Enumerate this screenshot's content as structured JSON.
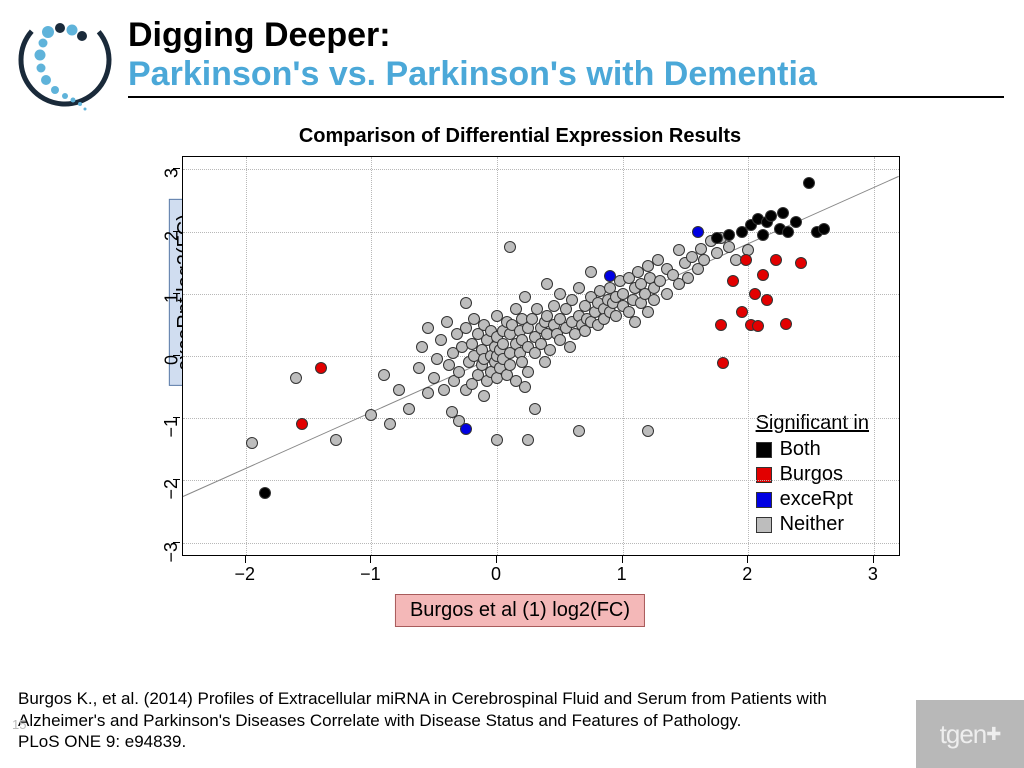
{
  "header": {
    "title_line1": "Digging Deeper:",
    "title_line2": "Parkinson's vs. Parkinson's with Dementia",
    "title_line1_color": "#000000",
    "title_line2_color": "#4ba8d8"
  },
  "chart": {
    "type": "scatter",
    "title": "Comparison of Differential Expression Results",
    "title_fontsize": 20,
    "xlabel": "Burgos et al (1) log2(FC)",
    "ylabel": "exceRpt log2(FC)",
    "xlabel_box_bg": "#f4b8b8",
    "xlabel_box_border": "#a85b5b",
    "ylabel_box_bg": "#d0ddf0",
    "ylabel_box_border": "#5b7ba8",
    "label_fontsize": 20,
    "xlim": [
      -2.5,
      3.2
    ],
    "ylim": [
      -3.2,
      3.2
    ],
    "xticks": [
      -2,
      -1,
      0,
      1,
      2,
      3
    ],
    "yticks": [
      -3,
      -2,
      -1,
      0,
      1,
      2,
      3
    ],
    "tick_fontsize": 18,
    "background_color": "#ffffff",
    "grid_color": "#b8b8b8",
    "marker_size": 12,
    "marker_border": "#333333",
    "regression_line": {
      "x1": -2.5,
      "y1": -2.25,
      "x2": 3.2,
      "y2": 2.9,
      "color": "#888888"
    },
    "legend": {
      "title": "Significant in",
      "items": [
        {
          "label": "Both",
          "color": "#000000",
          "shape": "square"
        },
        {
          "label": "Burgos",
          "color": "#e20000",
          "shape": "square"
        },
        {
          "label": "exceRpt",
          "color": "#0000e2",
          "shape": "square"
        },
        {
          "label": "Neither",
          "color": "#bdbdbd",
          "shape": "square"
        }
      ]
    },
    "series": {
      "neither_color": "#bdbdbd",
      "both_color": "#000000",
      "burgos_color": "#e20000",
      "excerpt_color": "#0000e2",
      "neither": [
        [
          -1.95,
          -1.4
        ],
        [
          -1.6,
          -0.35
        ],
        [
          -1.28,
          -1.35
        ],
        [
          -1.0,
          -0.95
        ],
        [
          -0.9,
          -0.3
        ],
        [
          -0.85,
          -1.1
        ],
        [
          -0.78,
          -0.55
        ],
        [
          -0.7,
          -0.85
        ],
        [
          -0.62,
          -0.2
        ],
        [
          -0.6,
          0.15
        ],
        [
          -0.55,
          -0.6
        ],
        [
          -0.55,
          0.45
        ],
        [
          -0.5,
          -0.35
        ],
        [
          -0.48,
          -0.05
        ],
        [
          -0.45,
          0.25
        ],
        [
          -0.42,
          -0.55
        ],
        [
          -0.4,
          0.55
        ],
        [
          -0.38,
          -0.15
        ],
        [
          -0.36,
          -0.9
        ],
        [
          -0.35,
          0.05
        ],
        [
          -0.34,
          -0.4
        ],
        [
          -0.32,
          0.35
        ],
        [
          -0.3,
          -0.25
        ],
        [
          -0.3,
          -1.05
        ],
        [
          -0.28,
          0.15
        ],
        [
          -0.25,
          -0.55
        ],
        [
          -0.25,
          0.45
        ],
        [
          -0.25,
          0.85
        ],
        [
          -0.22,
          -0.1
        ],
        [
          -0.2,
          0.2
        ],
        [
          -0.2,
          -0.45
        ],
        [
          -0.18,
          0.0
        ],
        [
          -0.18,
          0.6
        ],
        [
          -0.15,
          -0.3
        ],
        [
          -0.15,
          0.35
        ],
        [
          -0.12,
          -0.15
        ],
        [
          -0.12,
          0.1
        ],
        [
          -0.1,
          -0.05
        ],
        [
          -0.1,
          0.5
        ],
        [
          -0.1,
          -0.65
        ],
        [
          -0.08,
          0.25
        ],
        [
          -0.08,
          -0.4
        ],
        [
          -0.05,
          0.0
        ],
        [
          -0.05,
          0.4
        ],
        [
          -0.05,
          -0.25
        ],
        [
          -0.02,
          0.15
        ],
        [
          -0.02,
          -0.1
        ],
        [
          0.0,
          0.0
        ],
        [
          0.0,
          0.3
        ],
        [
          0.0,
          -0.35
        ],
        [
          0.0,
          0.65
        ],
        [
          0.0,
          -1.35
        ],
        [
          0.02,
          0.1
        ],
        [
          0.02,
          -0.2
        ],
        [
          0.05,
          0.4
        ],
        [
          0.05,
          -0.05
        ],
        [
          0.05,
          0.2
        ],
        [
          0.08,
          -0.3
        ],
        [
          0.08,
          0.55
        ],
        [
          0.1,
          0.05
        ],
        [
          0.1,
          0.35
        ],
        [
          0.1,
          -0.15
        ],
        [
          0.1,
          1.75
        ],
        [
          0.12,
          0.5
        ],
        [
          0.15,
          0.2
        ],
        [
          0.15,
          -0.4
        ],
        [
          0.15,
          0.75
        ],
        [
          0.18,
          0.05
        ],
        [
          0.18,
          0.4
        ],
        [
          0.2,
          -0.1
        ],
        [
          0.2,
          0.6
        ],
        [
          0.2,
          0.25
        ],
        [
          0.22,
          0.95
        ],
        [
          0.22,
          -0.5
        ],
        [
          0.25,
          0.15
        ],
        [
          0.25,
          0.45
        ],
        [
          0.25,
          -0.25
        ],
        [
          0.25,
          -1.35
        ],
        [
          0.28,
          0.6
        ],
        [
          0.3,
          0.3
        ],
        [
          0.3,
          0.05
        ],
        [
          0.3,
          -0.85
        ],
        [
          0.32,
          0.75
        ],
        [
          0.35,
          0.45
        ],
        [
          0.35,
          0.2
        ],
        [
          0.38,
          0.55
        ],
        [
          0.38,
          -0.1
        ],
        [
          0.4,
          0.65
        ],
        [
          0.4,
          0.35
        ],
        [
          0.4,
          1.15
        ],
        [
          0.42,
          0.1
        ],
        [
          0.45,
          0.5
        ],
        [
          0.45,
          0.8
        ],
        [
          0.48,
          0.35
        ],
        [
          0.5,
          0.6
        ],
        [
          0.5,
          0.25
        ],
        [
          0.5,
          1.0
        ],
        [
          0.55,
          0.45
        ],
        [
          0.55,
          0.75
        ],
        [
          0.58,
          0.15
        ],
        [
          0.6,
          0.55
        ],
        [
          0.6,
          0.9
        ],
        [
          0.62,
          0.35
        ],
        [
          0.65,
          0.65
        ],
        [
          0.65,
          1.1
        ],
        [
          0.65,
          -1.2
        ],
        [
          0.68,
          0.5
        ],
        [
          0.7,
          0.8
        ],
        [
          0.7,
          0.4
        ],
        [
          0.72,
          0.6
        ],
        [
          0.75,
          0.95
        ],
        [
          0.75,
          0.55
        ],
        [
          0.75,
          1.35
        ],
        [
          0.78,
          0.7
        ],
        [
          0.8,
          0.85
        ],
        [
          0.8,
          0.5
        ],
        [
          0.82,
          1.05
        ],
        [
          0.85,
          0.75
        ],
        [
          0.85,
          0.6
        ],
        [
          0.88,
          0.9
        ],
        [
          0.9,
          0.7
        ],
        [
          0.9,
          1.1
        ],
        [
          0.92,
          0.85
        ],
        [
          0.95,
          0.95
        ],
        [
          0.95,
          0.65
        ],
        [
          0.98,
          1.2
        ],
        [
          1.0,
          0.8
        ],
        [
          1.0,
          1.0
        ],
        [
          1.05,
          0.7
        ],
        [
          1.05,
          1.25
        ],
        [
          1.08,
          0.9
        ],
        [
          1.1,
          1.1
        ],
        [
          1.1,
          0.55
        ],
        [
          1.12,
          1.35
        ],
        [
          1.15,
          0.85
        ],
        [
          1.15,
          1.15
        ],
        [
          1.18,
          1.0
        ],
        [
          1.2,
          1.45
        ],
        [
          1.2,
          0.7
        ],
        [
          1.2,
          -1.2
        ],
        [
          1.22,
          1.25
        ],
        [
          1.25,
          1.1
        ],
        [
          1.25,
          0.9
        ],
        [
          1.28,
          1.55
        ],
        [
          1.3,
          1.2
        ],
        [
          1.35,
          1.0
        ],
        [
          1.35,
          1.4
        ],
        [
          1.4,
          1.3
        ],
        [
          1.45,
          1.15
        ],
        [
          1.45,
          1.7
        ],
        [
          1.5,
          1.5
        ],
        [
          1.52,
          1.25
        ],
        [
          1.55,
          1.6
        ],
        [
          1.6,
          1.4
        ],
        [
          1.62,
          1.72
        ],
        [
          1.65,
          1.55
        ],
        [
          1.7,
          1.85
        ],
        [
          1.75,
          1.65
        ],
        [
          1.78,
          1.9
        ],
        [
          1.85,
          1.75
        ],
        [
          1.9,
          1.55
        ],
        [
          2.0,
          1.7
        ]
      ],
      "both": [
        [
          -1.85,
          -2.2
        ],
        [
          1.75,
          1.9
        ],
        [
          1.85,
          1.95
        ],
        [
          1.95,
          2.0
        ],
        [
          2.02,
          2.1
        ],
        [
          2.08,
          2.2
        ],
        [
          2.12,
          1.95
        ],
        [
          2.15,
          2.15
        ],
        [
          2.18,
          2.25
        ],
        [
          2.25,
          2.05
        ],
        [
          2.28,
          2.3
        ],
        [
          2.32,
          2.0
        ],
        [
          2.38,
          2.15
        ],
        [
          2.48,
          2.78
        ],
        [
          2.55,
          2.0
        ],
        [
          2.6,
          2.05
        ]
      ],
      "burgos": [
        [
          -1.55,
          -1.1
        ],
        [
          -1.4,
          -0.2
        ],
        [
          1.78,
          0.5
        ],
        [
          1.8,
          -0.12
        ],
        [
          1.88,
          1.2
        ],
        [
          1.95,
          0.7
        ],
        [
          1.98,
          1.55
        ],
        [
          2.02,
          0.5
        ],
        [
          2.05,
          1.0
        ],
        [
          2.08,
          0.48
        ],
        [
          2.12,
          1.3
        ],
        [
          2.15,
          0.9
        ],
        [
          2.22,
          1.55
        ],
        [
          2.3,
          0.52
        ],
        [
          2.42,
          1.5
        ]
      ],
      "excerpt": [
        [
          -0.25,
          -1.18
        ],
        [
          0.9,
          1.28
        ],
        [
          1.6,
          2.0
        ]
      ]
    }
  },
  "citation": {
    "text": "Burgos K., et al.  (2014) Profiles of Extracellular miRNA in Cerebrospinal Fluid and Serum from Patients with Alzheimer's and Parkinson's Diseases Correlate with Disease Status and Features of Pathology.\nPLoS ONE 9: e94839."
  },
  "slide_number": "15",
  "brand_logo_text": "tgen"
}
